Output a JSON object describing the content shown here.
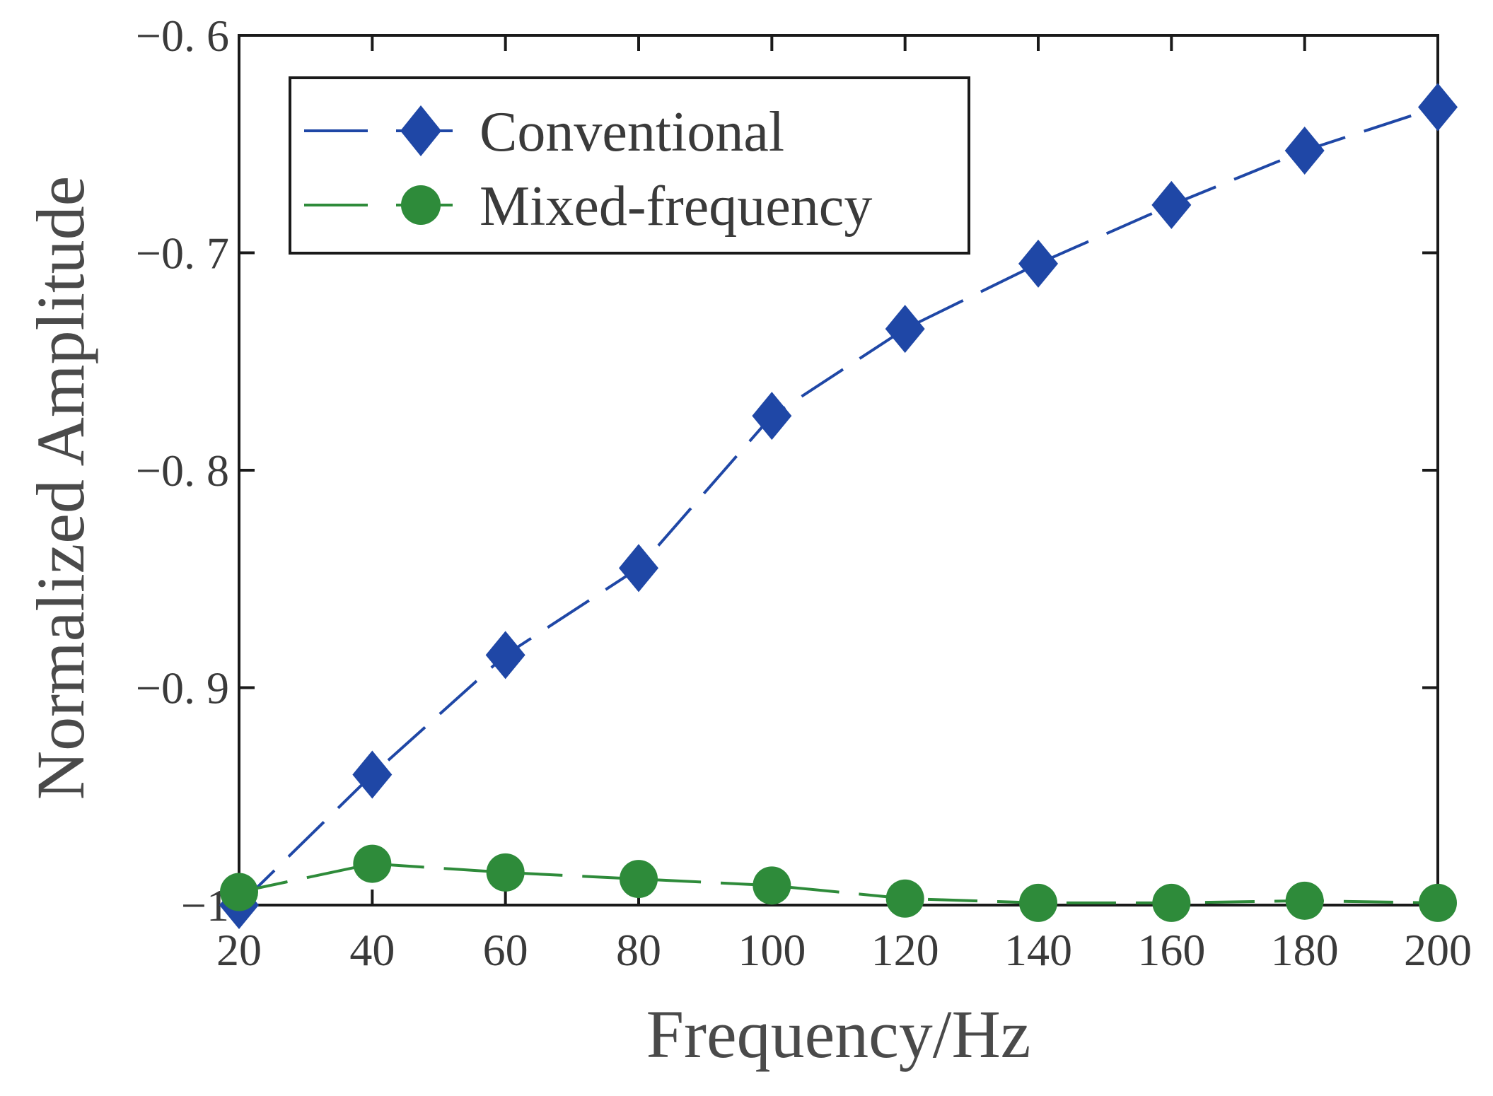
{
  "chart_data": {
    "type": "line",
    "title": "",
    "xlabel": "Frequency/Hz",
    "ylabel": "Normalized Amplitude",
    "x": [
      20,
      40,
      60,
      80,
      100,
      120,
      140,
      160,
      180,
      200
    ],
    "xticks": [
      "20",
      "40",
      "60",
      "80",
      "100",
      "120",
      "140",
      "160",
      "180",
      "200"
    ],
    "yticks": [
      {
        "value": -1.0,
        "label": "−1"
      },
      {
        "value": -0.9,
        "label": "−0. 9"
      },
      {
        "value": -0.8,
        "label": "−0. 8"
      },
      {
        "value": -0.7,
        "label": "−0. 7"
      },
      {
        "value": -0.6,
        "label": "−0. 6"
      }
    ],
    "xlim": [
      20,
      200
    ],
    "ylim": [
      -1.0,
      -0.6
    ],
    "grid": false,
    "legend_position": "top-left",
    "series": [
      {
        "name": "Conventional",
        "color": "#1f47a6",
        "marker": "diamond",
        "line_style": "dashed",
        "values": [
          -1.0,
          -0.94,
          -0.885,
          -0.845,
          -0.775,
          -0.735,
          -0.705,
          -0.678,
          -0.653,
          -0.633
        ]
      },
      {
        "name": "Mixed-frequency",
        "color": "#2e8b3a",
        "marker": "circle",
        "line_style": "dashed",
        "values": [
          -0.994,
          -0.981,
          -0.985,
          -0.988,
          -0.991,
          -0.997,
          -0.999,
          -0.999,
          -0.998,
          -0.999
        ]
      }
    ]
  }
}
